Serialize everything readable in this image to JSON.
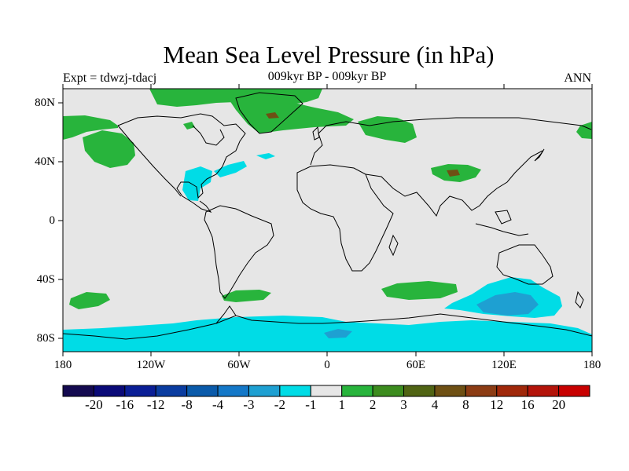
{
  "title": "Mean Sea Level Pressure (in hPa)",
  "subtitle": "009kyr BP - 009kyr BP",
  "left_label": "Expt = tdwzj-tdacj",
  "right_label": "ANN",
  "x_ticks": [
    "180",
    "120W",
    "60W",
    "0",
    "60E",
    "120E",
    "180"
  ],
  "y_ticks": [
    "80N",
    "40N",
    "0",
    "40S",
    "80S"
  ],
  "colorbar": {
    "labels": [
      "-20",
      "-16",
      "-12",
      "-8",
      "-4",
      "-3",
      "-2",
      "-1",
      "1",
      "2",
      "3",
      "4",
      "8",
      "12",
      "16",
      "20"
    ],
    "colors": [
      "#140a50",
      "#0a0a78",
      "#0a1e96",
      "#0a3ca0",
      "#0a5aaa",
      "#1478c8",
      "#1ea0d2",
      "#00dce6",
      "#e6e6e6",
      "#28b43c",
      "#3c8c1e",
      "#506414",
      "#6e5014",
      "#8c3c14",
      "#a0280a",
      "#b4140a",
      "#c80000"
    ]
  },
  "colors": {
    "background": "#e6e6e6",
    "positive_small": "#28b43c",
    "positive_mid": "#6e5014",
    "negative_small": "#00dce6",
    "negative_mid": "#1ea0d2",
    "coastline": "#000000"
  }
}
